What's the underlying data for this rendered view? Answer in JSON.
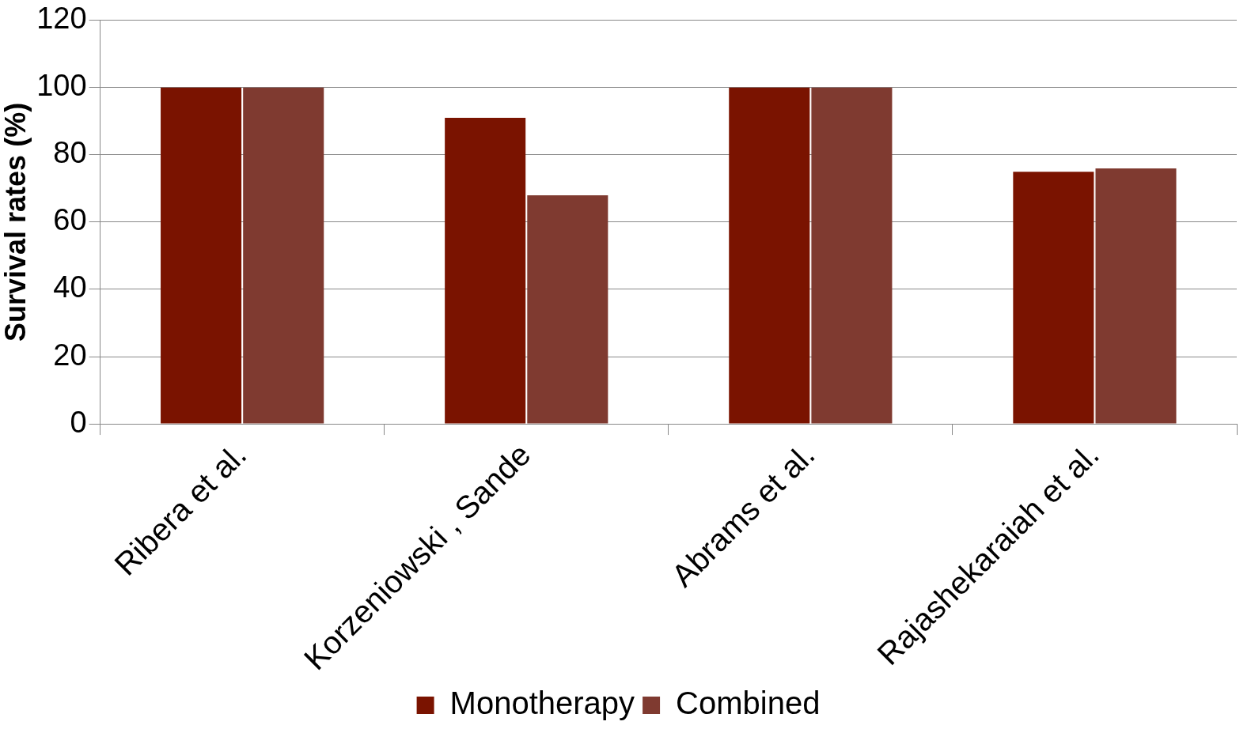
{
  "chart_data": {
    "type": "bar",
    "ylabel": "Survival rates (%)",
    "categories": [
      "Ribera et al.",
      "Korzeniowski , Sande",
      "Abrams et al.",
      "Rajashekaraiah et al."
    ],
    "series": [
      {
        "name": "Monotherapy",
        "color": "#7a1300",
        "values": [
          100,
          91,
          100,
          75
        ]
      },
      {
        "name": "Combined",
        "color": "#7f3a30",
        "values": [
          100,
          68,
          100,
          76
        ]
      }
    ],
    "ylim": [
      0,
      120
    ],
    "yticks": [
      0,
      20,
      40,
      60,
      80,
      100,
      120
    ],
    "grid": "y",
    "legend": "bottom"
  }
}
